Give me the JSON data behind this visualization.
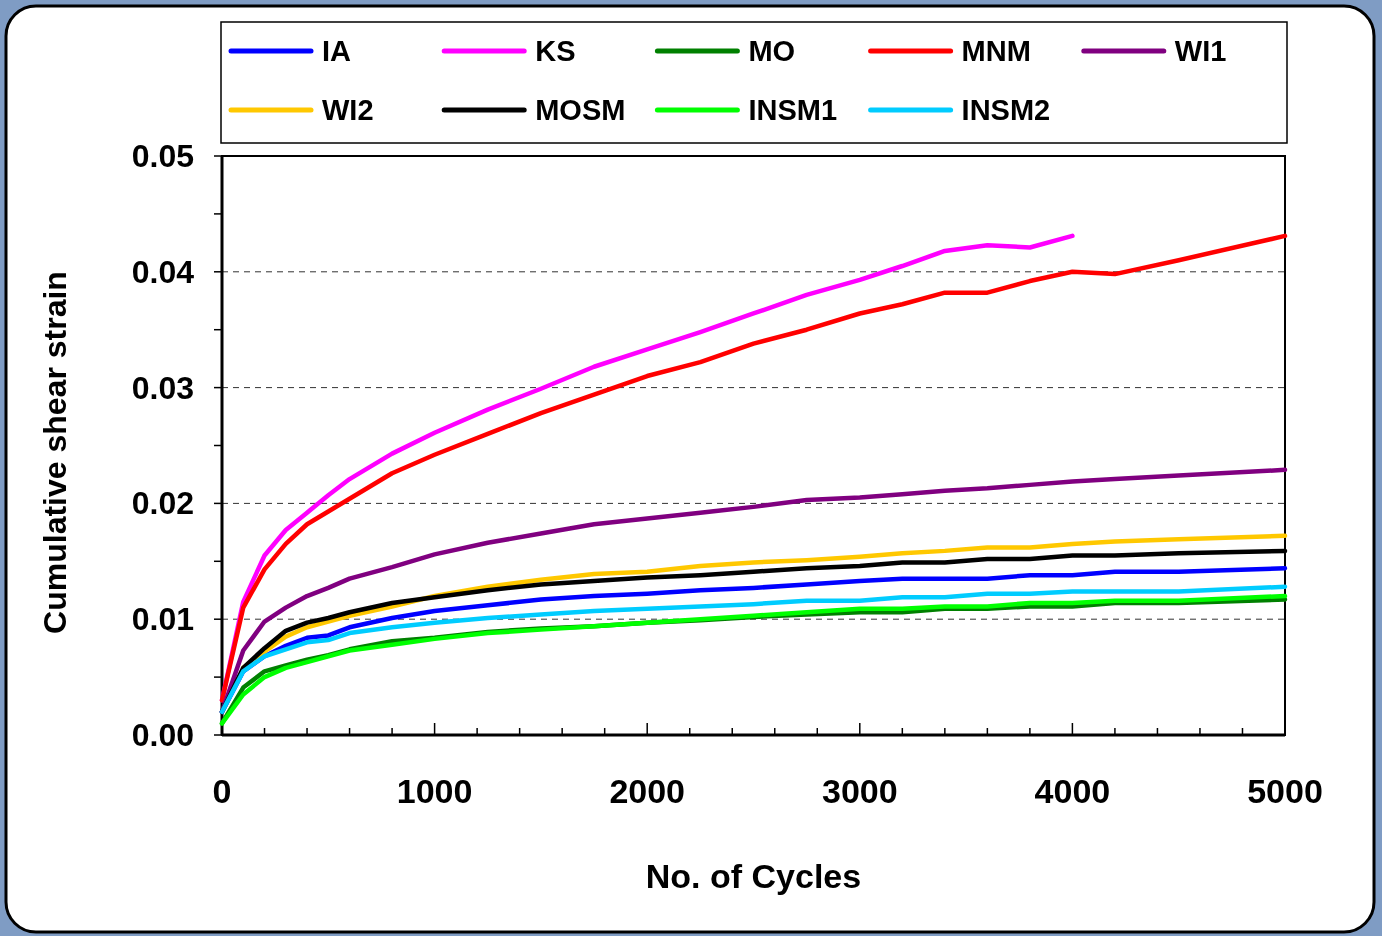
{
  "chart_data": {
    "type": "line",
    "xlabel": "No. of Cycles",
    "ylabel": "Cumulative shear strain",
    "x": [
      0,
      100,
      200,
      300,
      400,
      500,
      600,
      800,
      1000,
      1250,
      1500,
      1750,
      2000,
      2250,
      2500,
      2750,
      3000,
      3200,
      3400,
      3600,
      3800,
      4000,
      4200,
      4500,
      5000
    ],
    "series": [
      {
        "name": "IA",
        "color": "#0000ff",
        "values": [
          0.002,
          0.0055,
          0.0068,
          0.0077,
          0.0084,
          0.0086,
          0.0093,
          0.0101,
          0.0107,
          0.0112,
          0.0117,
          0.012,
          0.0122,
          0.0125,
          0.0127,
          0.013,
          0.0133,
          0.0135,
          0.0135,
          0.0135,
          0.0138,
          0.0138,
          0.0141,
          0.0141,
          0.0144
        ]
      },
      {
        "name": "KS",
        "color": "#ff00ff",
        "values": [
          0.003,
          0.0115,
          0.0155,
          0.0177,
          0.0192,
          0.0207,
          0.0221,
          0.0243,
          0.0261,
          0.0281,
          0.0299,
          0.0318,
          0.0333,
          0.0348,
          0.0364,
          0.038,
          0.0393,
          0.0405,
          0.0418,
          0.0423,
          0.0421,
          0.0431,
          null,
          null,
          null
        ]
      },
      {
        "name": "MO",
        "color": "#008000",
        "values": [
          0.001,
          0.0041,
          0.0055,
          0.006,
          0.0065,
          0.0069,
          0.0074,
          0.0081,
          0.0084,
          0.0089,
          0.0092,
          0.0094,
          0.0097,
          0.0099,
          0.0102,
          0.0104,
          0.0106,
          0.0106,
          0.0109,
          0.0109,
          0.0111,
          0.0111,
          0.0114,
          0.0114,
          0.0117
        ]
      },
      {
        "name": "MNM",
        "color": "#ff0000",
        "values": [
          0.003,
          0.011,
          0.0143,
          0.0165,
          0.0182,
          0.0193,
          0.0204,
          0.0226,
          0.0242,
          0.026,
          0.0278,
          0.0294,
          0.031,
          0.0322,
          0.0338,
          0.035,
          0.0364,
          0.0372,
          0.0382,
          0.0382,
          0.0392,
          0.04,
          0.0398,
          0.041,
          0.0431
        ]
      },
      {
        "name": "WI1",
        "color": "#800080",
        "values": [
          0.002,
          0.0073,
          0.0098,
          0.011,
          0.012,
          0.0127,
          0.0135,
          0.0145,
          0.0156,
          0.0166,
          0.0174,
          0.0182,
          0.0187,
          0.0192,
          0.0197,
          0.0203,
          0.0205,
          0.0208,
          0.0211,
          0.0213,
          0.0216,
          0.0219,
          0.0221,
          0.0224,
          0.0229
        ]
      },
      {
        "name": "WI2",
        "color": "#ffc800",
        "values": [
          null,
          0.0058,
          0.0072,
          0.0085,
          0.0093,
          0.0098,
          0.0103,
          0.0111,
          0.012,
          0.0128,
          0.0134,
          0.0139,
          0.0141,
          0.0146,
          0.0149,
          0.0151,
          0.0154,
          0.0157,
          0.0159,
          0.0162,
          0.0162,
          0.0165,
          0.0167,
          0.0169,
          0.0172
        ]
      },
      {
        "name": "MOSM",
        "color": "#000000",
        "values": [
          0.002,
          0.0058,
          0.0075,
          0.009,
          0.0097,
          0.0101,
          0.0106,
          0.0114,
          0.0119,
          0.0125,
          0.013,
          0.0133,
          0.0136,
          0.0138,
          0.0141,
          0.0144,
          0.0146,
          0.0149,
          0.0149,
          0.0152,
          0.0152,
          0.0155,
          0.0155,
          0.0157,
          0.0159
        ]
      },
      {
        "name": "INSM1",
        "color": "#00ff00",
        "values": [
          0.001,
          0.0035,
          0.005,
          0.0058,
          0.0063,
          0.0068,
          0.0073,
          0.0078,
          0.0083,
          0.0088,
          0.0091,
          0.0094,
          0.0097,
          0.01,
          0.0103,
          0.0106,
          0.0109,
          0.0109,
          0.0111,
          0.0111,
          0.0114,
          0.0114,
          0.0116,
          0.0116,
          0.012
        ]
      },
      {
        "name": "INSM2",
        "color": "#00ccff",
        "values": [
          0.002,
          0.0055,
          0.0068,
          0.0074,
          0.008,
          0.0082,
          0.0088,
          0.0093,
          0.0097,
          0.0101,
          0.0104,
          0.0107,
          0.0109,
          0.0111,
          0.0113,
          0.0116,
          0.0116,
          0.0119,
          0.0119,
          0.0122,
          0.0122,
          0.0124,
          0.0124,
          0.0124,
          0.0128
        ]
      }
    ],
    "xlim": [
      0,
      5000
    ],
    "ylim": [
      0,
      0.05
    ],
    "xticks": [
      0,
      {
        "value": 200,
        "label": null
      },
      {
        "value": 400,
        "label": null
      },
      {
        "value": 600,
        "label": null
      },
      {
        "value": 800,
        "label": null
      },
      1000,
      {
        "value": 1200,
        "label": null
      },
      {
        "value": 1400,
        "label": null
      },
      {
        "value": 1600,
        "label": null
      },
      {
        "value": 1800,
        "label": null
      },
      2000,
      {
        "value": 2200,
        "label": null
      },
      {
        "value": 2400,
        "label": null
      },
      {
        "value": 2600,
        "label": null
      },
      {
        "value": 2800,
        "label": null
      },
      3000,
      {
        "value": 3200,
        "label": null
      },
      {
        "value": 3400,
        "label": null
      },
      {
        "value": 3600,
        "label": null
      },
      {
        "value": 3800,
        "label": null
      },
      4000,
      {
        "value": 4200,
        "label": null
      },
      {
        "value": 4400,
        "label": null
      },
      {
        "value": 4600,
        "label": null
      },
      {
        "value": 4800,
        "label": null
      },
      5000
    ],
    "yticks": [
      {
        "value": 0,
        "label": "0.00"
      },
      {
        "value": 0.005,
        "label": null
      },
      {
        "value": 0.01,
        "label": "0.01"
      },
      {
        "value": 0.015,
        "label": null
      },
      {
        "value": 0.02,
        "label": "0.02"
      },
      {
        "value": 0.025,
        "label": null
      },
      {
        "value": 0.03,
        "label": "0.03"
      },
      {
        "value": 0.035,
        "label": null
      },
      {
        "value": 0.04,
        "label": "0.04"
      },
      {
        "value": 0.045,
        "label": null
      },
      {
        "value": 0.05,
        "label": "0.05"
      }
    ],
    "grid": "y",
    "legend": "top",
    "marker": "none",
    "line_style": "solid"
  }
}
